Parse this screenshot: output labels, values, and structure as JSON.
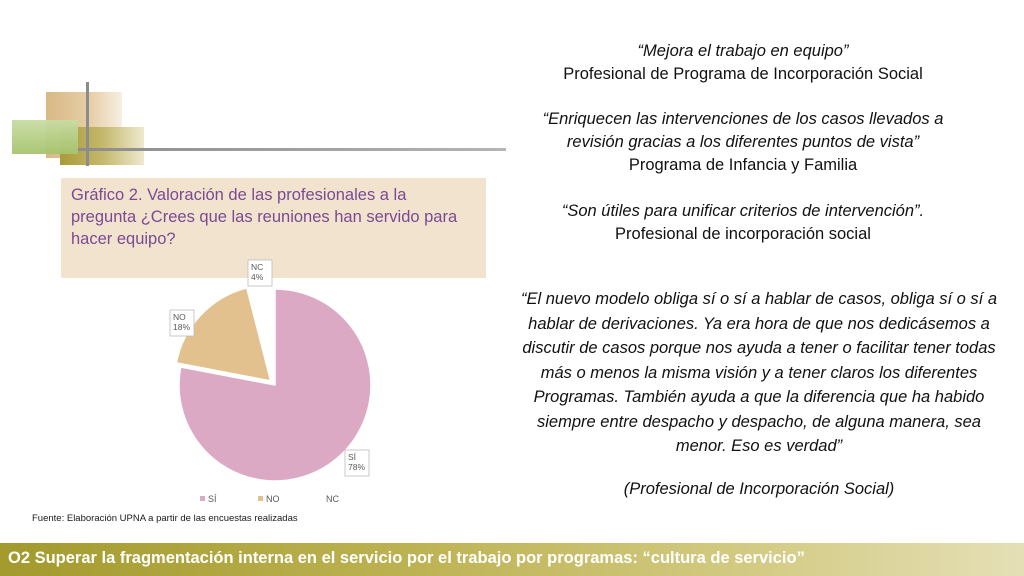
{
  "caption": "Gráfico 2. Valoración de las profesionales a la pregunta ¿Crees que las reuniones han servido para hacer equipo?",
  "source": "Fuente: Elaboración UPNA a partir de las encuestas realizadas",
  "quotes": [
    {
      "text": "“Mejora el trabajo en equipo”",
      "author": "Profesional de Programa de Incorporación Social"
    },
    {
      "text": "“Enriquecen las intervenciones de los casos llevados a revisión gracias a los diferentes puntos de vista”",
      "author": "Programa de Infancia y Familia"
    },
    {
      "text": "“Son útiles para unificar criterios de intervención”.",
      "author": "Profesional de incorporación social"
    }
  ],
  "long_quote": "“El nuevo modelo obliga sí o sí a hablar de casos, obliga sí o sí a hablar de derivaciones. Ya era hora de que nos dedicásemos a discutir de casos porque nos ayuda a tener o facilitar tener todas más o menos la misma visión y a tener claros los diferentes Programas. También ayuda a que la diferencia que ha habido siempre entre despacho y despacho, de alguna manera, sea menor. Eso es verdad”",
  "long_quote_author": "(Profesional de Incorporación Social)",
  "footer": "O2 Superar la fragmentación interna en el servicio por el trabajo por programas: “cultura de servicio”",
  "chart_data": {
    "type": "pie",
    "categories": [
      "SÍ",
      "NO",
      "NC"
    ],
    "values": [
      78,
      18,
      4
    ],
    "labels": [
      "SÍ\n78%",
      "NO\n18%",
      "NC\n4%"
    ],
    "colors": [
      "#dba9c3",
      "#e2c18f",
      "#ffffff"
    ],
    "legend": [
      "SÍ",
      "NO",
      "NC"
    ],
    "legend_position": "bottom"
  }
}
